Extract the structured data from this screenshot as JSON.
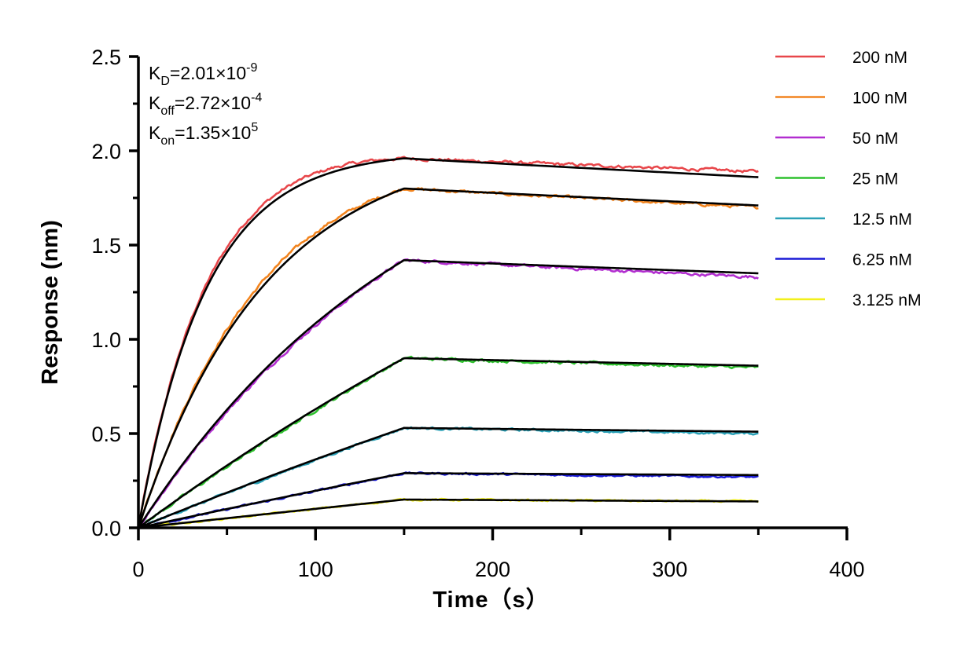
{
  "chart_data": {
    "type": "line",
    "xlabel": "Time（s）",
    "ylabel": "Response (nm)",
    "xlim": [
      0,
      400
    ],
    "ylim": [
      0,
      2.5
    ],
    "x_ticks": [
      "0",
      "100",
      "200",
      "300",
      "400"
    ],
    "y_ticks": [
      "0.0",
      "0.5",
      "1.0",
      "1.5",
      "2.0",
      "2.5"
    ],
    "grid": false,
    "legend_position": "top-right",
    "association_end": 150,
    "time_end": 350,
    "annotations": {
      "kd": {
        "base": "K",
        "sub": "D",
        "value": "=2.01×10",
        "exp": "-9"
      },
      "koff": {
        "base": "K",
        "sub": "off",
        "value": "=2.72×10",
        "exp": "-4"
      },
      "kon": {
        "base": "K",
        "sub": "on",
        "value": "=1.35×10",
        "exp": "5"
      }
    },
    "fit_color": "#000000",
    "series": [
      {
        "name": "200 nM",
        "color": "#e8474b",
        "peak": 1.96,
        "end": 1.86,
        "tau": 38,
        "data_end": 1.89
      },
      {
        "name": "100 nM",
        "color": "#f2841e",
        "peak": 1.8,
        "end": 1.71,
        "tau": 72,
        "data_end": 1.7
      },
      {
        "name": "50 nM",
        "color": "#b22ed0",
        "peak": 1.42,
        "end": 1.35,
        "tau": 160,
        "data_end": 1.33
      },
      {
        "name": "25 nM",
        "color": "#2ec12e",
        "peak": 0.9,
        "end": 0.86,
        "tau": 500,
        "data_end": 0.85
      },
      {
        "name": "12.5 nM",
        "color": "#2aa1b7",
        "peak": 0.53,
        "end": 0.51,
        "tau": 900,
        "data_end": 0.5
      },
      {
        "name": "6.25 nM",
        "color": "#1a1ad6",
        "peak": 0.29,
        "end": 0.28,
        "tau": 1500,
        "data_end": 0.27
      },
      {
        "name": "3.125 nM",
        "color": "#f2f01a",
        "peak": 0.15,
        "end": 0.14,
        "tau": 3000,
        "data_end": 0.14
      }
    ]
  }
}
